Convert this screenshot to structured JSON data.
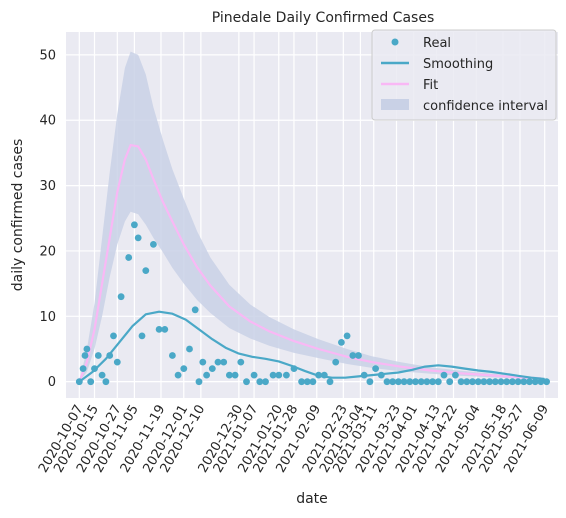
{
  "chart_data": {
    "type": "line",
    "title": "Pinedale Daily Confirmed Cases",
    "xlabel": "date",
    "ylabel": "daily confirmed cases",
    "ylim": [
      -2.5,
      53.5
    ],
    "yticks": [
      0,
      10,
      20,
      30,
      40,
      50
    ],
    "grid": true,
    "legend_position": "top-right",
    "x_range": [
      "2020-09-30",
      "2021-06-16"
    ],
    "xtick_labels": [
      "2020-10-07",
      "2020-10-15",
      "2020-10-27",
      "2020-11-05",
      "2020-11-19",
      "2020-12-01",
      "2020-12-10",
      "2020-12-30",
      "2021-01-07",
      "2021-01-20",
      "2021-01-28",
      "2021-02-09",
      "2021-02-23",
      "2021-03-04",
      "2021-03-11",
      "2021-03-23",
      "2021-04-01",
      "2021-04-13",
      "2021-04-22",
      "2021-05-04",
      "2021-05-18",
      "2021-05-27",
      "2021-06-09"
    ],
    "colors": {
      "background": "#eaeaf2",
      "real": "#4aa8c7",
      "smoothing": "#4aa8c7",
      "fit": "#f9b8f5",
      "confidence": "#c9d1e6"
    },
    "series": [
      {
        "name": "Real",
        "kind": "scatter",
        "x": [
          "2020-10-07",
          "2020-10-09",
          "2020-10-10",
          "2020-10-11",
          "2020-10-13",
          "2020-10-15",
          "2020-10-17",
          "2020-10-19",
          "2020-10-21",
          "2020-10-23",
          "2020-10-25",
          "2020-10-27",
          "2020-10-29",
          "2020-11-02",
          "2020-11-05",
          "2020-11-07",
          "2020-11-09",
          "2020-11-11",
          "2020-11-15",
          "2020-11-18",
          "2020-11-21",
          "2020-11-25",
          "2020-11-28",
          "2020-12-01",
          "2020-12-04",
          "2020-12-07",
          "2020-12-09",
          "2020-12-11",
          "2020-12-13",
          "2020-12-16",
          "2020-12-19",
          "2020-12-22",
          "2020-12-25",
          "2020-12-28",
          "2020-12-31",
          "2021-01-03",
          "2021-01-07",
          "2021-01-10",
          "2021-01-13",
          "2021-01-17",
          "2021-01-20",
          "2021-01-24",
          "2021-01-28",
          "2021-02-01",
          "2021-02-04",
          "2021-02-07",
          "2021-02-10",
          "2021-02-13",
          "2021-02-16",
          "2021-02-19",
          "2021-02-22",
          "2021-02-25",
          "2021-02-28",
          "2021-03-03",
          "2021-03-06",
          "2021-03-09",
          "2021-03-12",
          "2021-03-15",
          "2021-03-18",
          "2021-03-21",
          "2021-03-24",
          "2021-03-27",
          "2021-03-30",
          "2021-04-02",
          "2021-04-05",
          "2021-04-08",
          "2021-04-11",
          "2021-04-14",
          "2021-04-17",
          "2021-04-20",
          "2021-04-23",
          "2021-04-26",
          "2021-04-29",
          "2021-05-02",
          "2021-05-05",
          "2021-05-08",
          "2021-05-11",
          "2021-05-14",
          "2021-05-17",
          "2021-05-20",
          "2021-05-23",
          "2021-05-26",
          "2021-05-29",
          "2021-06-01",
          "2021-06-04",
          "2021-06-07",
          "2021-06-10"
        ],
        "y": [
          0,
          2,
          4,
          5,
          0,
          2,
          4,
          1,
          0,
          4,
          7,
          3,
          13,
          19,
          24,
          22,
          7,
          17,
          21,
          8,
          8,
          4,
          1,
          2,
          5,
          11,
          0,
          3,
          1,
          2,
          3,
          3,
          1,
          1,
          3,
          0,
          1,
          0,
          0,
          1,
          1,
          1,
          2,
          0,
          0,
          0,
          1,
          1,
          0,
          3,
          6,
          7,
          4,
          4,
          1,
          0,
          2,
          1,
          0,
          0,
          0,
          0,
          0,
          0,
          0,
          0,
          0,
          0,
          1,
          0,
          1,
          0,
          0,
          0,
          0,
          0,
          0,
          0,
          0,
          0,
          0,
          0,
          0,
          0,
          0,
          0,
          0
        ]
      },
      {
        "name": "Smoothing",
        "kind": "line",
        "x": [
          "2020-10-07",
          "2020-10-14",
          "2020-10-21",
          "2020-10-28",
          "2020-11-04",
          "2020-11-11",
          "2020-11-18",
          "2020-11-25",
          "2020-12-02",
          "2020-12-09",
          "2020-12-16",
          "2020-12-23",
          "2020-12-30",
          "2021-01-06",
          "2021-01-13",
          "2021-01-20",
          "2021-01-27",
          "2021-02-03",
          "2021-02-10",
          "2021-02-17",
          "2021-02-24",
          "2021-03-03",
          "2021-03-10",
          "2021-03-17",
          "2021-03-24",
          "2021-03-31",
          "2021-04-07",
          "2021-04-14",
          "2021-04-21",
          "2021-04-28",
          "2021-05-05",
          "2021-05-12",
          "2021-05-19",
          "2021-05-26",
          "2021-06-02",
          "2021-06-09"
        ],
        "y": [
          0,
          1.5,
          3.5,
          6,
          8.5,
          10.3,
          10.7,
          10.4,
          9.5,
          8,
          6.5,
          5.2,
          4.3,
          3.8,
          3.5,
          3.1,
          2.4,
          1.6,
          0.9,
          0.6,
          0.6,
          0.8,
          1.0,
          1.2,
          1.4,
          1.8,
          2.3,
          2.5,
          2.3,
          2.0,
          1.7,
          1.5,
          1.2,
          0.9,
          0.6,
          0.4
        ]
      },
      {
        "name": "Fit",
        "kind": "line",
        "x": [
          "2020-10-07",
          "2020-10-11",
          "2020-10-15",
          "2020-10-19",
          "2020-10-23",
          "2020-10-27",
          "2020-10-31",
          "2020-11-03",
          "2020-11-07",
          "2020-11-11",
          "2020-11-15",
          "2020-11-20",
          "2020-11-25",
          "2020-12-01",
          "2020-12-08",
          "2020-12-15",
          "2020-12-25",
          "2021-01-05",
          "2021-01-15",
          "2021-01-28",
          "2021-02-10",
          "2021-02-25",
          "2021-03-10",
          "2021-03-25",
          "2021-04-10",
          "2021-04-25",
          "2021-05-10",
          "2021-05-25",
          "2021-06-07"
        ],
        "y": [
          0,
          3,
          8,
          15,
          22,
          29,
          34,
          36.2,
          36,
          34,
          31,
          27.5,
          24.5,
          21,
          17.5,
          14.7,
          11.5,
          9.2,
          7.7,
          6.2,
          5,
          3.8,
          3.0,
          2.3,
          1.7,
          1.3,
          1.0,
          0.7,
          0.5
        ]
      },
      {
        "name": "confidence interval",
        "kind": "band",
        "x": [
          "2020-10-07",
          "2020-10-11",
          "2020-10-15",
          "2020-10-19",
          "2020-10-23",
          "2020-10-27",
          "2020-10-31",
          "2020-11-03",
          "2020-11-07",
          "2020-11-11",
          "2020-11-15",
          "2020-11-20",
          "2020-11-25",
          "2020-12-01",
          "2020-12-08",
          "2020-12-15",
          "2020-12-25",
          "2021-01-05",
          "2021-01-15",
          "2021-01-28",
          "2021-02-10",
          "2021-02-25",
          "2021-03-10",
          "2021-03-25",
          "2021-04-10",
          "2021-04-25",
          "2021-05-10",
          "2021-05-25",
          "2021-06-07"
        ],
        "lower": [
          0,
          1.5,
          5,
          10,
          16,
          21,
          24.5,
          26,
          25.6,
          24,
          22,
          19.8,
          17.4,
          15,
          12.5,
          10.5,
          8.2,
          6.6,
          5.5,
          4.4,
          3.6,
          2.7,
          2.1,
          1.6,
          1.2,
          0.9,
          0.7,
          0.5,
          0.3
        ],
        "upper": [
          0,
          5,
          12,
          22,
          32,
          41,
          48,
          50.5,
          50,
          47,
          42,
          37,
          32.5,
          28,
          23,
          19,
          14.8,
          11.8,
          9.9,
          8,
          6.5,
          5,
          3.9,
          3,
          2.2,
          1.7,
          1.3,
          0.9,
          0.7
        ]
      }
    ]
  }
}
